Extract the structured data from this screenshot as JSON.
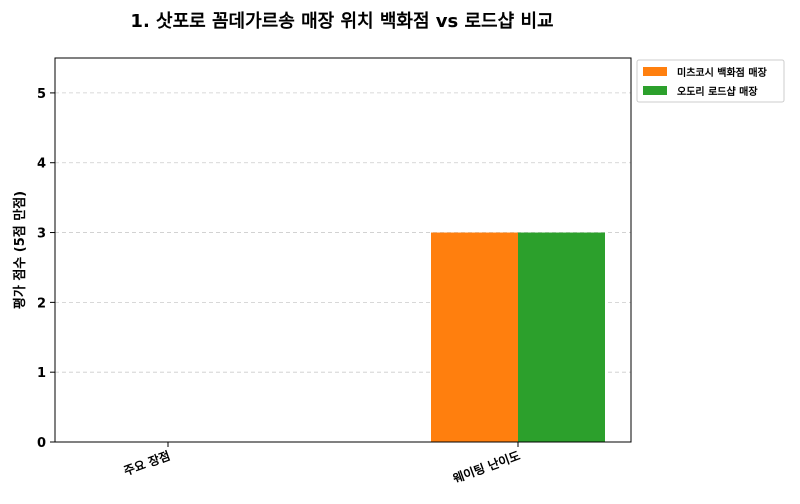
{
  "chart_data": {
    "type": "bar",
    "title": "1. 삿포로 꼼데가르송 매장 위치 백화점 vs 로드샵 비교",
    "xlabel": "",
    "ylabel": "평가 점수 (5점 만점)",
    "categories": [
      "주요 장점",
      "웨이팅 난이도"
    ],
    "series": [
      {
        "name": "미츠코시 백화점 매장",
        "color": "#ff7f0e",
        "values": [
          null,
          3
        ]
      },
      {
        "name": "오도리 로드샵 매장",
        "color": "#2ca02c",
        "values": [
          null,
          3
        ]
      }
    ],
    "ylim": [
      0,
      5.5
    ],
    "yticks": [
      0,
      1,
      2,
      3,
      4,
      5
    ],
    "grid": true,
    "legend_position": "outside-top-right"
  }
}
